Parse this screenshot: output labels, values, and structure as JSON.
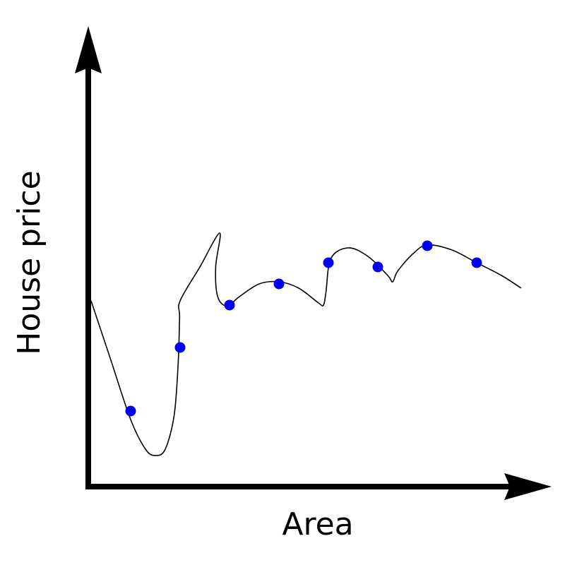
{
  "chart_data": {
    "type": "scatter",
    "xlabel": "Area",
    "ylabel": "House price",
    "xlim": [
      0,
      10
    ],
    "ylim": [
      0,
      10
    ],
    "grid": false,
    "legend": "none",
    "ticks": "none",
    "series": [
      {
        "kind": "points",
        "color": "#0000ee",
        "points": [
          {
            "x": 1,
            "y": 1.8
          },
          {
            "x": 2,
            "y": 3.3
          },
          {
            "x": 3,
            "y": 4.3
          },
          {
            "x": 4,
            "y": 4.8
          },
          {
            "x": 5,
            "y": 5.3
          },
          {
            "x": 6,
            "y": 5.2
          },
          {
            "x": 7,
            "y": 5.7
          },
          {
            "x": 8,
            "y": 5.3
          }
        ]
      },
      {
        "kind": "fitted-curve",
        "color": "#000000",
        "points": [
          {
            "x": 0.2,
            "y": 4.4
          },
          {
            "x": 0.6,
            "y": 3.0
          },
          {
            "x": 1.0,
            "y": 1.6
          },
          {
            "x": 1.3,
            "y": 0.9
          },
          {
            "x": 1.5,
            "y": 0.75
          },
          {
            "x": 1.7,
            "y": 0.9
          },
          {
            "x": 1.88,
            "y": 1.7
          },
          {
            "x": 1.96,
            "y": 2.9
          },
          {
            "x": 1.99,
            "y": 4.0
          },
          {
            "x": 2.0,
            "y": 4.4
          },
          {
            "x": 2.4,
            "y": 5.2
          },
          {
            "x": 2.8,
            "y": 6.0
          },
          {
            "x": 2.72,
            "y": 5.2
          },
          {
            "x": 2.76,
            "y": 4.5
          },
          {
            "x": 2.95,
            "y": 4.28
          },
          {
            "x": 3.2,
            "y": 4.5
          },
          {
            "x": 3.6,
            "y": 4.8
          },
          {
            "x": 4.0,
            "y": 4.85
          },
          {
            "x": 4.4,
            "y": 4.7
          },
          {
            "x": 4.8,
            "y": 4.35
          },
          {
            "x": 4.9,
            "y": 4.3
          },
          {
            "x": 4.95,
            "y": 4.6
          },
          {
            "x": 5.05,
            "y": 5.4
          },
          {
            "x": 5.4,
            "y": 5.65
          },
          {
            "x": 5.8,
            "y": 5.45
          },
          {
            "x": 6.2,
            "y": 5.0
          },
          {
            "x": 6.3,
            "y": 4.85
          },
          {
            "x": 6.4,
            "y": 5.1
          },
          {
            "x": 6.7,
            "y": 5.5
          },
          {
            "x": 7.0,
            "y": 5.72
          },
          {
            "x": 7.5,
            "y": 5.6
          },
          {
            "x": 8.0,
            "y": 5.3
          },
          {
            "x": 8.5,
            "y": 5.0
          },
          {
            "x": 8.9,
            "y": 4.7
          }
        ]
      }
    ]
  }
}
